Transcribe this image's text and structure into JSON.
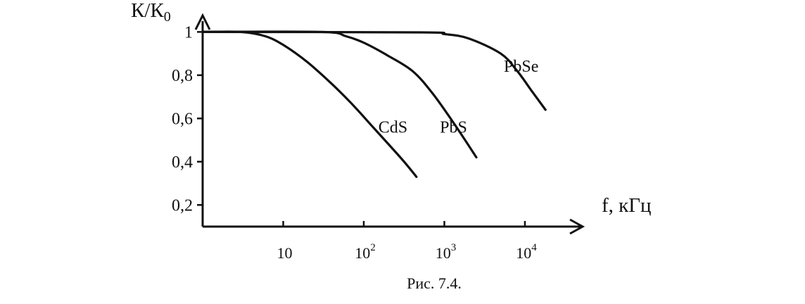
{
  "chart_data": {
    "type": "line",
    "xlabel": "f, кГц",
    "ylabel": "К/К0",
    "ylabel_main": "К/К",
    "ylabel_sub": "0",
    "x_scale": "log",
    "xlim": [
      1,
      50000
    ],
    "ylim": [
      0.1,
      1.05
    ],
    "y_ticks": [
      {
        "value": 1,
        "label": "1"
      },
      {
        "value": 0.8,
        "label": "0,8"
      },
      {
        "value": 0.6,
        "label": "0,6"
      },
      {
        "value": 0.4,
        "label": "0,4"
      },
      {
        "value": 0.2,
        "label": "0,2"
      }
    ],
    "x_ticks": [
      {
        "value": 10,
        "base": "10",
        "exp": ""
      },
      {
        "value": 100,
        "base": "10",
        "exp": "2"
      },
      {
        "value": 1000,
        "base": "10",
        "exp": "3"
      },
      {
        "value": 10000,
        "base": "10",
        "exp": "4"
      }
    ],
    "grid": false,
    "legend": "none",
    "series": [
      {
        "name": "CdS",
        "x": [
          1,
          3,
          6,
          10,
          20,
          40,
          70,
          130,
          300,
          450
        ],
        "y": [
          1,
          1,
          0.98,
          0.94,
          0.86,
          0.76,
          0.67,
          0.56,
          0.41,
          0.33
        ]
      },
      {
        "name": "PbS",
        "x": [
          1,
          30,
          60,
          100,
          200,
          400,
          700,
          1300,
          2500
        ],
        "y": [
          1,
          1,
          0.98,
          0.95,
          0.89,
          0.82,
          0.72,
          0.58,
          0.42
        ]
      },
      {
        "name": "PbSe",
        "x": [
          1,
          500,
          1000,
          2000,
          5000,
          8000,
          12000,
          18000
        ],
        "y": [
          1,
          0.998,
          0.99,
          0.97,
          0.9,
          0.82,
          0.73,
          0.64
        ]
      }
    ],
    "series_label_anchor_x": [
      230,
      1300,
      9000
    ],
    "series_label_anchor_y": [
      0.535,
      0.535,
      0.815
    ]
  },
  "caption": "Рис. 7.4."
}
